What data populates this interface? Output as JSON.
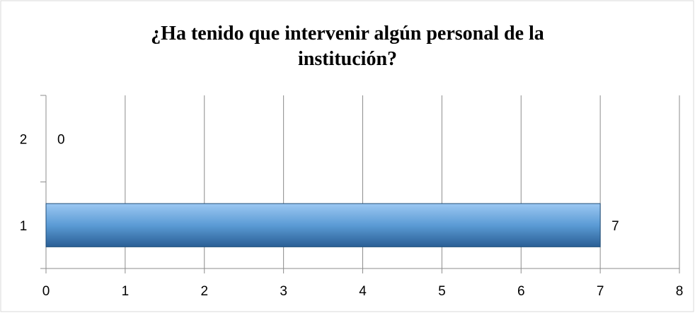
{
  "chart_data": {
    "type": "barh",
    "title": "¿Ha tenido que intervenir algún personal de la institución?",
    "categories": [
      "1",
      "2"
    ],
    "values": [
      7,
      0
    ],
    "color": "#5b9bd5",
    "xlim": [
      0,
      8
    ],
    "xticks": [
      0,
      1,
      2,
      3,
      4,
      5,
      6,
      7,
      8
    ],
    "grid": true
  }
}
